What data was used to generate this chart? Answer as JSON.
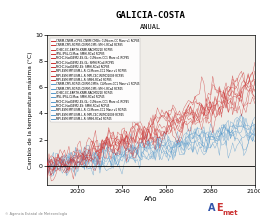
{
  "title": "GALICIA-COSTA",
  "subtitle": "ANUAL",
  "xlabel": "Año",
  "ylabel": "Cambio de la temperatura máxima (°C)",
  "xlim": [
    2006,
    2100
  ],
  "ylim": [
    -1.5,
    10
  ],
  "yticks": [
    0,
    2,
    4,
    6,
    8,
    10
  ],
  "xticks": [
    2020,
    2040,
    2060,
    2080,
    2100
  ],
  "x_start": 2006,
  "x_end": 2100,
  "rcp85_color": "#cc3333",
  "rcp45_color": "#5599cc",
  "background": "#f0ede8",
  "red_finals": [
    5.5,
    6.2,
    5.8,
    6.5,
    7.0,
    6.8,
    5.2,
    6.0,
    6.8,
    5.5
  ],
  "blue_finals": [
    2.5,
    3.0,
    2.8,
    3.2,
    3.5,
    2.2,
    2.8,
    3.0,
    2.5
  ],
  "legend_red_labels": [
    "CNRM-CNRM-rCP85-CNRM-CM5h: CLMcom-CC Marz v1 RCP85",
    "CNRM-CM5-RCP85-CNRM-CM5: SMHI-RCa4 RCP85",
    "ICHEC-EC-EARTH-KNMI-RACMO22E RCP85",
    "IPSL-IPSL-CLMua: SMHI-RCa4 RCP85",
    "MOHC-HadGEM2-ES-GL: CLMcom-CC1 Marz v1 RCP85",
    "MOHC-HadGEM2-ES-GL: SMHI-RCa4 RCP85",
    "MOHC-HadGEM2-ES: SMHI-RCa4 RCP85",
    "MPI-ESM-MPI-ESM-L-R: CLMcom-CC1 Marz v1 RCP85",
    "MPI-ESM-MPI-ESM-L-R: MPI-CEC-REMO2009 RCP85",
    "MPI-ESM-MPI-ESM-L-R: SMHI-RCa4 RCP85"
  ],
  "legend_blue_labels": [
    "CNRM-CM5-RCP45-CNRM-CM5h: CLMcom-CC1 Marz v1 RCP45",
    "CNRM-CM5-RCP45-CNRM-CM5: SMHI-RCa4 RCP45",
    "ICHEC-EC-EARTH-KNMI-RACMO22E RCP45",
    "IPSL-IPSL-CLMua: SMHI-RCa4 RCP45",
    "MOHC-HadGEM2-ES-GL: CLMcom-CC1 Marz v1 RCP45",
    "MOHC-HadGEM2-ES: SMHI-RCa4 RCP45",
    "MPI-ESM-MPI-ESM-L-R: CLMcom-CC1 Marz v1 RCP45",
    "MPI-ESM-MPI-ESM-L-R: MPI-CEC-REMO2009 RCP45",
    "MPI-ESM-MPI-ESM-L-R: SMHI-RCa4 RCP45"
  ]
}
